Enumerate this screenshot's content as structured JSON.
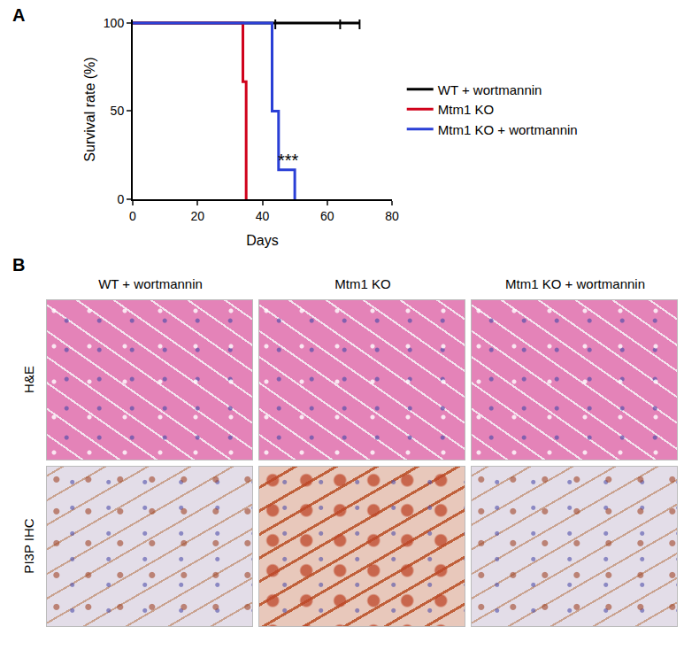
{
  "chart_data": {
    "type": "line",
    "panel_label": "A",
    "x_label": "Days",
    "y_label": "Survival rate (%)",
    "xlim": [
      0,
      80
    ],
    "xticks": [
      0,
      20,
      40,
      60,
      80
    ],
    "ylim": [
      0,
      102
    ],
    "yticks": [
      0,
      50,
      100
    ],
    "line_style": "step",
    "grid": false,
    "legend": "right",
    "annotations": [
      {
        "text": "***",
        "x": 48,
        "y": 22
      }
    ],
    "series": [
      {
        "name": "WT + wortmannin",
        "color": "#000000",
        "x": [
          0,
          70
        ],
        "values": [
          100,
          100
        ],
        "censored": [
          44,
          64,
          70
        ]
      },
      {
        "name": "Mtm1 KO",
        "color": "#d0021b",
        "x": [
          0,
          34,
          35
        ],
        "values": [
          100,
          66.7,
          0
        ],
        "censored": []
      },
      {
        "name": "Mtm1 KO + wortmannin",
        "color": "#2a3fd6",
        "x": [
          0,
          43,
          45,
          50
        ],
        "values": [
          100,
          50,
          16.7,
          0
        ],
        "censored": []
      }
    ]
  },
  "histology": {
    "panel_label": "B",
    "columns": [
      "WT + wortmannin",
      "Mtm1 KO",
      "Mtm1 KO + wortmannin"
    ],
    "rows": [
      "H&E",
      "PI3P IHC"
    ]
  }
}
